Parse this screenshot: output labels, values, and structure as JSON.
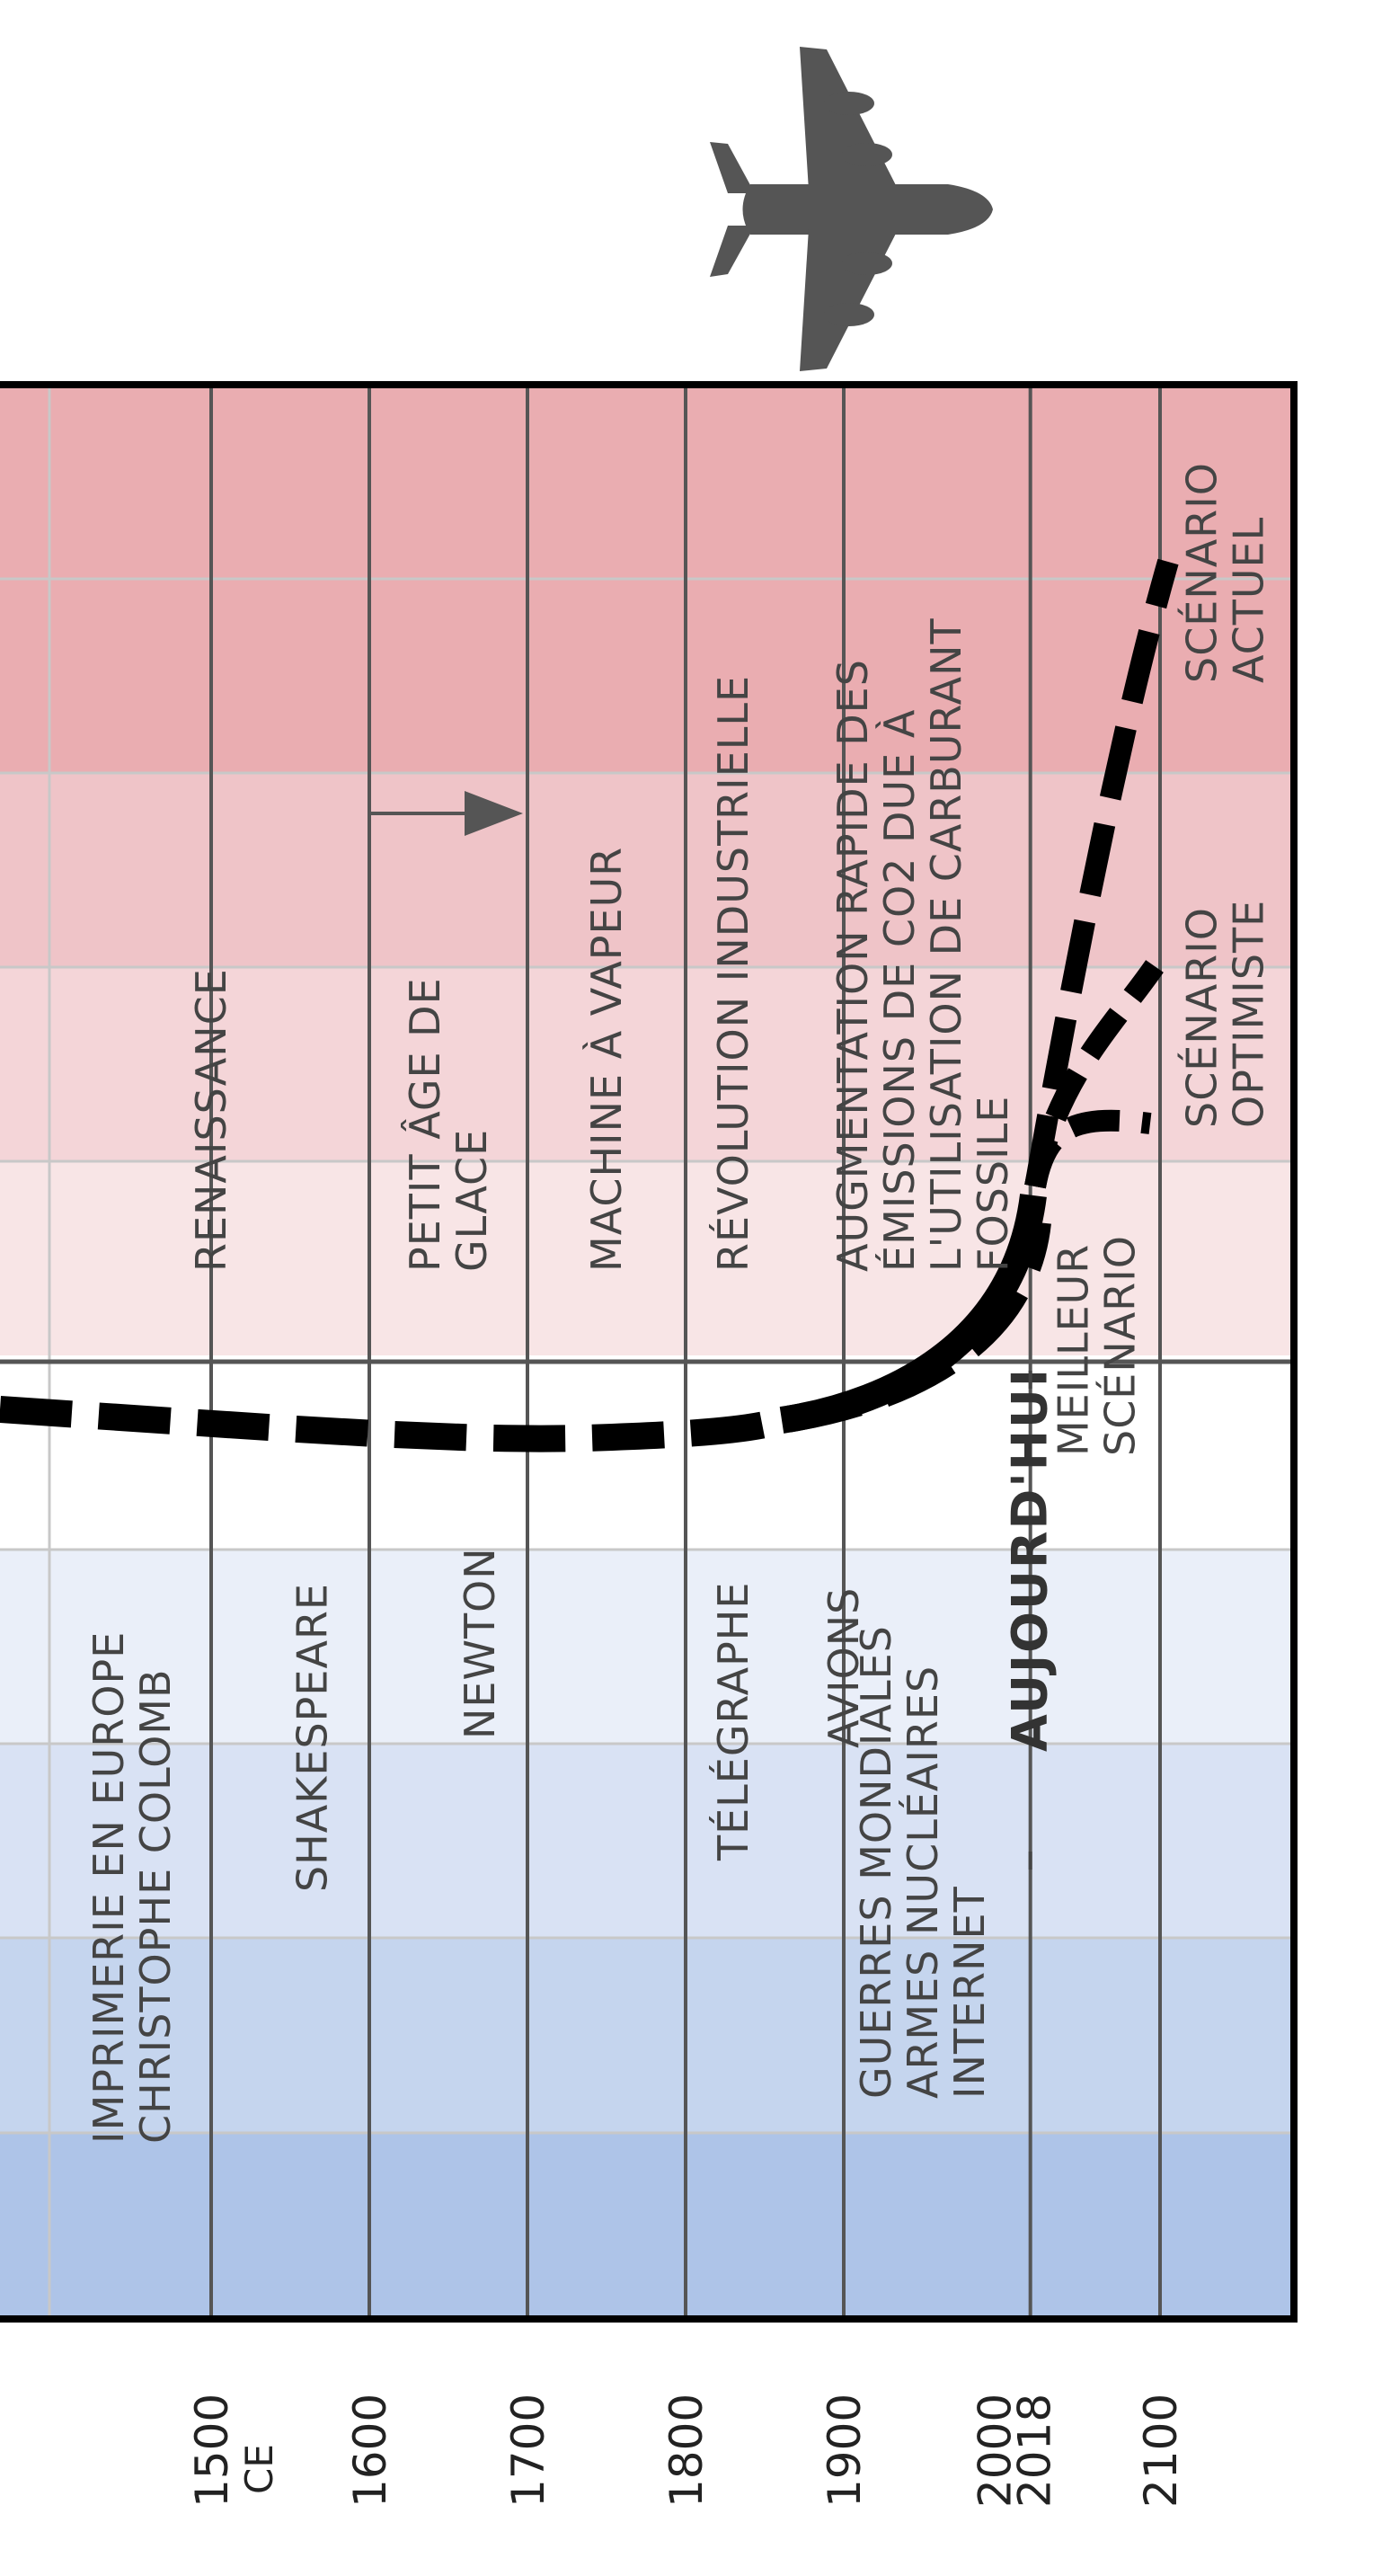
{
  "colors": {
    "bands": [
      "#aec4e8",
      "#c5d5ee",
      "#d9e2f4",
      "#eaeff9",
      "#ffffff",
      "#f8e5e6",
      "#f4d5d8",
      "#efc4c8",
      "#eaadb1"
    ],
    "grid_major": "#555555",
    "grid_minor": "#c8c8c8",
    "frame": "#000000",
    "curve": "#000000",
    "airplane": "#555555"
  },
  "icons": {
    "airplane": "airplane-icon"
  },
  "today_label": "AUJOURD'HUI",
  "ticks": [
    {
      "year": 1500,
      "label": "1500",
      "sublabel": "CE"
    },
    {
      "year": 1600,
      "label": "1600"
    },
    {
      "year": 1700,
      "label": "1700"
    },
    {
      "year": 1800,
      "label": "1800"
    },
    {
      "year": 1900,
      "label": "1900"
    },
    {
      "year": 2000,
      "label": "2000"
    },
    {
      "year": 2018,
      "label": "2018"
    },
    {
      "year": 2100,
      "label": "2100"
    }
  ],
  "left_events": [
    {
      "year": 1450,
      "lines": [
        "IMPRIMERIE EN EUROPE",
        "CHRISTOPHE COLOMB"
      ]
    },
    {
      "year": 1564,
      "lines": [
        "SHAKESPEARE"
      ]
    },
    {
      "year": 1670,
      "lines": [
        "NEWTON"
      ]
    },
    {
      "year": 1830,
      "lines": [
        "TÉLÉGRAPHE"
      ]
    },
    {
      "year": 1900,
      "lines": [
        "AVIONS"
      ]
    },
    {
      "year": 1950,
      "lines": [
        "GUERRES MONDIALES",
        "ARMES NUCLÉAIRES",
        "INTERNET"
      ]
    }
  ],
  "right_events": [
    {
      "year": 1500,
      "lines": [
        "RENAISSANCE"
      ]
    },
    {
      "year": 1650,
      "lines": [
        "PETIT ÂGE DE",
        "GLACE"
      ]
    },
    {
      "year": 1750,
      "lines": [
        "MACHINE À VAPEUR"
      ]
    },
    {
      "year": 1830,
      "lines": [
        "RÉVOLUTION INDUSTRIELLE"
      ]
    },
    {
      "year": 1950,
      "lines": [
        "AUGMENTATION RAPIDE DES",
        "ÉMISSIONS DE CO2 DUE À",
        "L'UTILISATION DE CARBURANT",
        "FOSSILE"
      ]
    }
  ],
  "scenarios": [
    {
      "year": 2060,
      "lines": [
        "MEILLEUR",
        "SCÉNARIO"
      ]
    },
    {
      "year": 2090,
      "lines": [
        "SCÉNARIO",
        "OPTIMISTE"
      ]
    },
    {
      "year": 2090,
      "lines": [
        "SCÉNARIO",
        "ACTUEL"
      ]
    }
  ]
}
